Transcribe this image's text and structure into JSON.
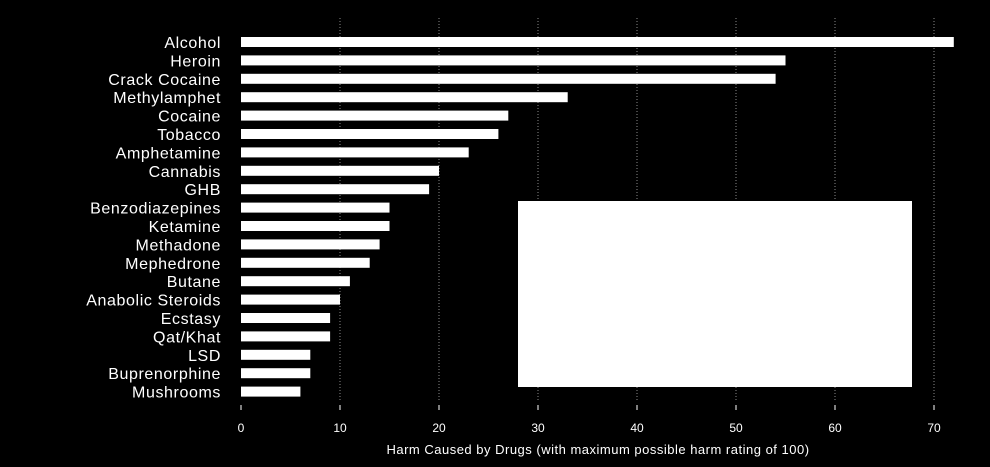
{
  "chart_data": {
    "type": "bar",
    "orientation": "horizontal",
    "categories": [
      "Alcohol",
      "Heroin",
      "Crack Cocaine",
      "Methylamphet",
      "Cocaine",
      "Tobacco",
      "Amphetamine",
      "Cannabis",
      "GHB",
      "Benzodiazepines",
      "Ketamine",
      "Methadone",
      "Mephedrone",
      "Butane",
      "Anabolic Steroids",
      "Ecstasy",
      "Qat/Khat",
      "LSD",
      "Buprenorphine",
      "Mushrooms"
    ],
    "values": [
      72,
      55,
      54,
      33,
      27,
      26,
      23,
      20,
      19,
      15,
      15,
      14,
      13,
      11,
      10,
      9,
      9,
      7,
      7,
      6
    ],
    "xlabel": "Harm Caused by Drugs (with maximum possible harm rating of 100)",
    "xlim": [
      0,
      72
    ],
    "xticks": [
      0,
      10,
      20,
      30,
      40,
      50,
      60,
      70
    ],
    "grid": "vertical dotted",
    "background": "#000000",
    "bar_color": "#ffffff",
    "annotation_box": "white rectangle overlaying lower-right plot area"
  }
}
